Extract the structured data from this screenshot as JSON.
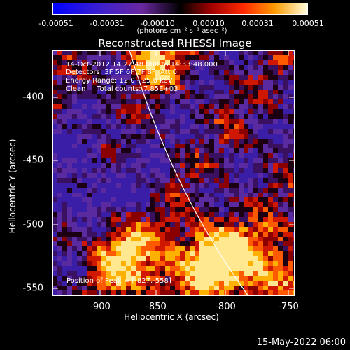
{
  "colorbar": {
    "ticks": [
      "-0.00051",
      "-0.00031",
      "-0.00010",
      "0.00010",
      "0.00031",
      "0.00051"
    ],
    "units_label": "(photons cm⁻² s⁻¹ asec⁻²)"
  },
  "title": "Reconstructed RHESSI Image",
  "info": {
    "time_range": "14-Oct-2012 14:27:48.000 to 14:33:48.000",
    "detectors": "Detectors: 3F 5F 6F 7F 8F, Att 0",
    "energy": "Energy Range: 12.0 - 25.0 keV",
    "method": "Clean     Total counts: 7.85E+03"
  },
  "peak_label": "Position of Peak = [-827,-558]",
  "axes": {
    "xlabel": "Heliocentric X (arcsec)",
    "ylabel": "Heliocentric Y (arcsec)",
    "xticks": [
      "-900",
      "-850",
      "-800",
      "-750"
    ],
    "yticks": [
      "-400",
      "-450",
      "-500",
      "-550"
    ]
  },
  "footer_date": "15-May-2022 06:00"
}
